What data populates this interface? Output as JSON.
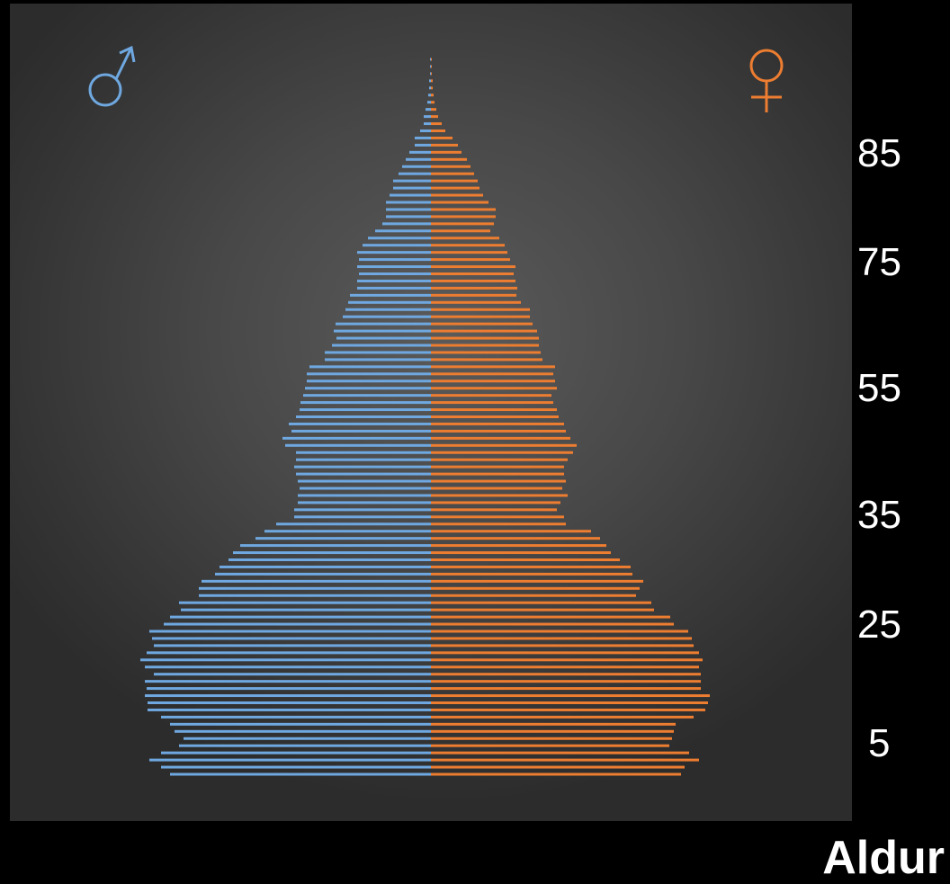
{
  "chart_data": {
    "type": "bar",
    "orientation": "horizontal",
    "layout": "population-pyramid",
    "ylabel": "Aldur",
    "y_ticks": [
      "5",
      "25",
      "35",
      "55",
      "75",
      "85"
    ],
    "y_tick_values": [
      5,
      25,
      35,
      55,
      75,
      85
    ],
    "ylim": [
      0,
      100
    ],
    "age_bins": 101,
    "legend": {
      "male_symbol": "♂",
      "female_symbol": "♀",
      "placement": "top-left / top-right"
    },
    "grid": false,
    "colors": {
      "male": "#6fa8e0",
      "female": "#ec7d31",
      "background": "#000000",
      "plot_area": "#444444"
    },
    "series": [
      {
        "name": "♂",
        "side": "left",
        "ages": [
          0,
          1,
          2,
          3,
          4,
          5,
          6,
          7,
          8,
          9,
          10,
          11,
          12,
          13,
          14,
          15,
          16,
          17,
          18,
          19,
          20,
          21,
          22,
          23,
          24,
          25,
          26,
          27,
          28,
          29,
          30,
          31,
          32,
          33,
          34,
          35,
          36,
          37,
          38,
          39,
          40,
          41,
          42,
          43,
          44,
          45,
          46,
          47,
          48,
          49,
          50,
          51,
          52,
          53,
          54,
          55,
          56,
          57,
          58,
          59,
          60,
          61,
          62,
          63,
          64,
          65,
          66,
          67,
          68,
          69,
          70,
          71,
          72,
          73,
          74,
          75,
          76,
          77,
          78,
          79,
          80,
          81,
          82,
          83,
          84,
          85,
          86,
          87,
          88,
          89,
          90,
          91,
          92,
          93,
          94,
          95,
          96,
          97,
          98,
          99,
          100
        ],
        "values": [
          290,
          300,
          313,
          300,
          280,
          275,
          285,
          290,
          300,
          315,
          315,
          318,
          316,
          318,
          308,
          318,
          323,
          316,
          308,
          310,
          313,
          297,
          290,
          278,
          280,
          258,
          258,
          255,
          240,
          235,
          225,
          220,
          212,
          195,
          185,
          172,
          152,
          152,
          148,
          148,
          146,
          148,
          150,
          152,
          150,
          150,
          162,
          165,
          155,
          158,
          150,
          146,
          145,
          142,
          140,
          138,
          138,
          135,
          118,
          118,
          110,
          105,
          108,
          106,
          98,
          95,
          92,
          90,
          82,
          82,
          80,
          82,
          80,
          82,
          76,
          70,
          62,
          54,
          50,
          50,
          50,
          46,
          42,
          42,
          36,
          32,
          28,
          24,
          18,
          18,
          12,
          8,
          8,
          6,
          4,
          3,
          2,
          2,
          1,
          1,
          1
        ]
      },
      {
        "name": "♀",
        "side": "right",
        "ages": [
          0,
          1,
          2,
          3,
          4,
          5,
          6,
          7,
          8,
          9,
          10,
          11,
          12,
          13,
          14,
          15,
          16,
          17,
          18,
          19,
          20,
          21,
          22,
          23,
          24,
          25,
          26,
          27,
          28,
          29,
          30,
          31,
          32,
          33,
          34,
          35,
          36,
          37,
          38,
          39,
          40,
          41,
          42,
          43,
          44,
          45,
          46,
          47,
          48,
          49,
          50,
          51,
          52,
          53,
          54,
          55,
          56,
          57,
          58,
          59,
          60,
          61,
          62,
          63,
          64,
          65,
          66,
          67,
          68,
          69,
          70,
          71,
          72,
          73,
          74,
          75,
          76,
          77,
          78,
          79,
          80,
          81,
          82,
          83,
          84,
          85,
          86,
          87,
          88,
          89,
          90,
          91,
          92,
          93,
          94,
          95,
          96,
          97,
          98,
          99,
          100
        ],
        "values": [
          278,
          282,
          298,
          287,
          265,
          268,
          270,
          272,
          292,
          305,
          308,
          310,
          300,
          300,
          300,
          298,
          302,
          298,
          292,
          290,
          286,
          270,
          266,
          248,
          245,
          228,
          232,
          236,
          224,
          222,
          210,
          200,
          195,
          188,
          178,
          150,
          148,
          140,
          144,
          152,
          146,
          150,
          148,
          148,
          152,
          158,
          162,
          155,
          150,
          148,
          142,
          140,
          136,
          134,
          140,
          138,
          136,
          138,
          124,
          122,
          120,
          120,
          118,
          113,
          110,
          110,
          100,
          95,
          96,
          94,
          92,
          94,
          88,
          85,
          82,
          76,
          66,
          70,
          72,
          72,
          64,
          58,
          54,
          52,
          48,
          44,
          40,
          34,
          30,
          24,
          16,
          12,
          8,
          6,
          4,
          3,
          2,
          2,
          1,
          1,
          1
        ]
      }
    ]
  }
}
